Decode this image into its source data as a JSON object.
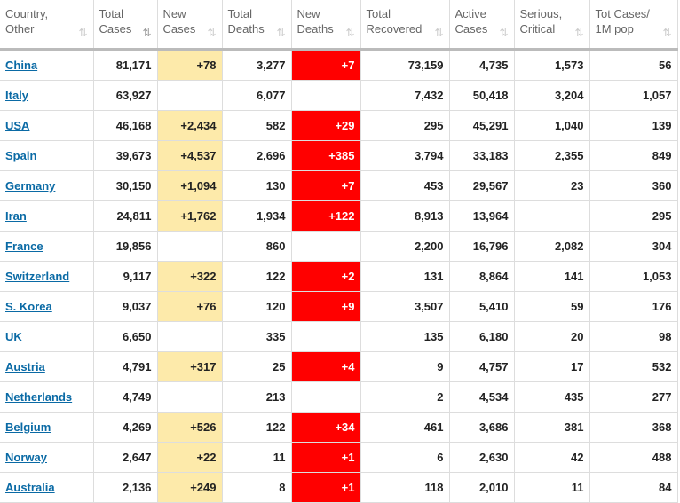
{
  "headers": [
    {
      "l1": "Country,",
      "l2": "Other"
    },
    {
      "l1": "Total",
      "l2": "Cases"
    },
    {
      "l1": "New",
      "l2": "Cases"
    },
    {
      "l1": "Total",
      "l2": "Deaths"
    },
    {
      "l1": "New",
      "l2": "Deaths"
    },
    {
      "l1": "Total",
      "l2": "Recovered"
    },
    {
      "l1": "Active",
      "l2": "Cases"
    },
    {
      "l1": "Serious,",
      "l2": "Critical"
    },
    {
      "l1": "Tot Cases/",
      "l2": "1M pop"
    }
  ],
  "sort_icon": "⇅",
  "rows": [
    [
      "China",
      "81,171",
      "+78",
      "3,277",
      "+7",
      "73,159",
      "4,735",
      "1,573",
      "56"
    ],
    [
      "Italy",
      "63,927",
      "",
      "6,077",
      "",
      "7,432",
      "50,418",
      "3,204",
      "1,057"
    ],
    [
      "USA",
      "46,168",
      "+2,434",
      "582",
      "+29",
      "295",
      "45,291",
      "1,040",
      "139"
    ],
    [
      "Spain",
      "39,673",
      "+4,537",
      "2,696",
      "+385",
      "3,794",
      "33,183",
      "2,355",
      "849"
    ],
    [
      "Germany",
      "30,150",
      "+1,094",
      "130",
      "+7",
      "453",
      "29,567",
      "23",
      "360"
    ],
    [
      "Iran",
      "24,811",
      "+1,762",
      "1,934",
      "+122",
      "8,913",
      "13,964",
      "",
      "295"
    ],
    [
      "France",
      "19,856",
      "",
      "860",
      "",
      "2,200",
      "16,796",
      "2,082",
      "304"
    ],
    [
      "Switzerland",
      "9,117",
      "+322",
      "122",
      "+2",
      "131",
      "8,864",
      "141",
      "1,053"
    ],
    [
      "S. Korea",
      "9,037",
      "+76",
      "120",
      "+9",
      "3,507",
      "5,410",
      "59",
      "176"
    ],
    [
      "UK",
      "6,650",
      "",
      "335",
      "",
      "135",
      "6,180",
      "20",
      "98"
    ],
    [
      "Austria",
      "4,791",
      "+317",
      "25",
      "+4",
      "9",
      "4,757",
      "17",
      "532"
    ],
    [
      "Netherlands",
      "4,749",
      "",
      "213",
      "",
      "2",
      "4,534",
      "435",
      "277"
    ],
    [
      "Belgium",
      "4,269",
      "+526",
      "122",
      "+34",
      "461",
      "3,686",
      "381",
      "368"
    ],
    [
      "Norway",
      "2,647",
      "+22",
      "11",
      "+1",
      "6",
      "2,630",
      "42",
      "488"
    ],
    [
      "Australia",
      "2,136",
      "+249",
      "8",
      "+1",
      "118",
      "2,010",
      "11",
      "84"
    ]
  ],
  "colors": {
    "new_cases_bg": "#fdeaaa",
    "new_deaths_bg": "#ff0000",
    "link": "#0a6aa5"
  }
}
